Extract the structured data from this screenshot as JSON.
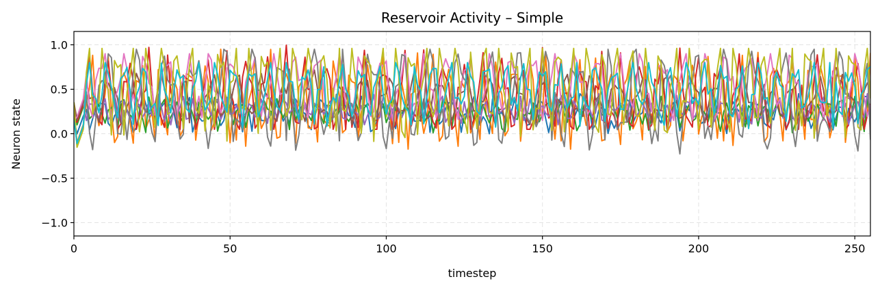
{
  "chart_data": {
    "type": "line",
    "title": "Reservoir Activity – Simple",
    "xlabel": "timestep",
    "ylabel": "Neuron state",
    "xlim": [
      0,
      255
    ],
    "ylim": [
      -1.15,
      1.15
    ],
    "xticks": [
      0,
      50,
      100,
      150,
      200,
      250
    ],
    "xtick_labels": [
      "0",
      "50",
      "100",
      "150",
      "200",
      "250"
    ],
    "yticks": [
      -1.0,
      -0.5,
      0.0,
      0.5,
      1.0
    ],
    "ytick_labels": [
      "−1.0",
      "−0.5",
      "0.0",
      "0.5",
      "1.0"
    ],
    "grid": true,
    "legend": "none",
    "series": [
      {
        "color": "#1f77b4",
        "x0": 0,
        "dx": 1,
        "n": 256,
        "base": 0.25,
        "amp": 0.13,
        "period": 7.0,
        "low": -0.17,
        "high": 0.45,
        "dip_every": 19,
        "dip_value": 0.05
      },
      {
        "color": "#ff7f0e",
        "x0": 0,
        "dx": 1,
        "n": 256,
        "base": 0.38,
        "amp": 0.38,
        "period": 5.2,
        "low": -0.33,
        "high": 1.0,
        "dip_every": 13,
        "dip_value": -0.05
      },
      {
        "color": "#2ca02c",
        "x0": 0,
        "dx": 1,
        "n": 256,
        "base": 0.25,
        "amp": 0.11,
        "period": 4.1,
        "low": 0.0,
        "high": 0.42,
        "dip_every": 23,
        "dip_value": 0.05
      },
      {
        "color": "#d62728",
        "x0": 0,
        "dx": 1,
        "n": 256,
        "base": 0.42,
        "amp": 0.36,
        "period": 6.3,
        "low": 0.05,
        "high": 1.0,
        "dip_every": 29,
        "dip_value": 0.08
      },
      {
        "color": "#9467bd",
        "x0": 0,
        "dx": 1,
        "n": 256,
        "base": 0.27,
        "amp": 0.1,
        "period": 3.6,
        "low": 0.1,
        "high": 0.45,
        "dip_every": 31,
        "dip_value": 0.12
      },
      {
        "color": "#8c564b",
        "x0": 0,
        "dx": 1,
        "n": 256,
        "base": 0.4,
        "amp": 0.2,
        "period": 8.1,
        "low": 0.1,
        "high": 0.85,
        "dip_every": 37,
        "dip_value": 0.15
      },
      {
        "color": "#e377c2",
        "x0": 0,
        "dx": 1,
        "n": 256,
        "base": 0.55,
        "amp": 0.3,
        "period": 6.9,
        "low": 0.15,
        "high": 0.9,
        "dip_every": 41,
        "dip_value": 0.2
      },
      {
        "color": "#7f7f7f",
        "x0": 0,
        "dx": 1,
        "n": 256,
        "base": 0.42,
        "amp": 0.42,
        "period": 9.4,
        "low": -0.4,
        "high": 0.95,
        "dip_every": 17,
        "dip_value": -0.05
      },
      {
        "color": "#bcbd22",
        "x0": 0,
        "dx": 1,
        "n": 256,
        "base": 0.55,
        "amp": 0.42,
        "period": 4.7,
        "low": -0.42,
        "high": 0.96,
        "dip_every": 21,
        "dip_value": 0.05
      },
      {
        "color": "#17becf",
        "x0": 0,
        "dx": 1,
        "n": 256,
        "base": 0.5,
        "amp": 0.25,
        "period": 5.8,
        "low": -0.35,
        "high": 0.8,
        "dip_every": 27,
        "dip_value": 0.1
      }
    ]
  }
}
